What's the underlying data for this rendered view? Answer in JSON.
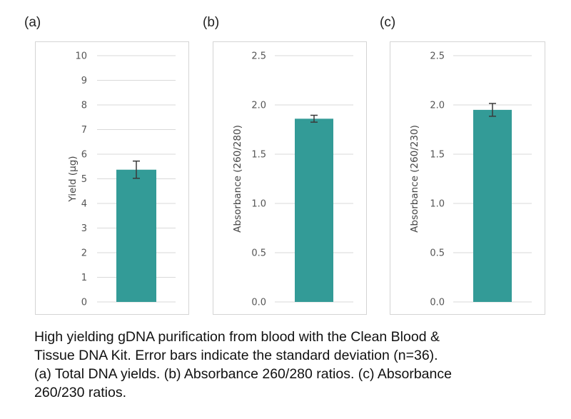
{
  "panels": [
    "(a)",
    "(b)",
    "(c)"
  ],
  "caption": [
    "High yielding gDNA purification from blood with the Clean Blood &",
    "Tissue DNA Kit. Error bars indicate the standard deviation (n=36).",
    "(a) Total DNA yields. (b) Absorbance 260/280 ratios. (c) Absorbance",
    "260/230 ratios."
  ],
  "colors": {
    "bar": "#339b97",
    "grid": "#d9d9d9",
    "error_bar": "#3a3a3a"
  },
  "chart_data": [
    {
      "type": "bar",
      "categories": [
        ""
      ],
      "values": [
        5.37
      ],
      "error": [
        0.35
      ],
      "ylabel": "Yield (µg)",
      "ylim": [
        0,
        10
      ],
      "yticks": [
        "0",
        "1",
        "2",
        "3",
        "4",
        "5",
        "6",
        "7",
        "8",
        "9",
        "10"
      ],
      "grid": true
    },
    {
      "type": "bar",
      "categories": [
        ""
      ],
      "values": [
        1.86
      ],
      "error": [
        0.035
      ],
      "ylabel": "Absorbance (260/280)",
      "ylim": [
        0,
        2.5
      ],
      "yticks": [
        "0.0",
        "0.5",
        "1.0",
        "1.5",
        "2.0",
        "2.5"
      ],
      "grid": true
    },
    {
      "type": "bar",
      "categories": [
        ""
      ],
      "values": [
        1.95
      ],
      "error": [
        0.065
      ],
      "ylabel": "Absorbance (260/230)",
      "ylim": [
        0,
        2.5
      ],
      "yticks": [
        "0.0",
        "0.5",
        "1.0",
        "1.5",
        "2.0",
        "2.5"
      ],
      "grid": true
    }
  ]
}
